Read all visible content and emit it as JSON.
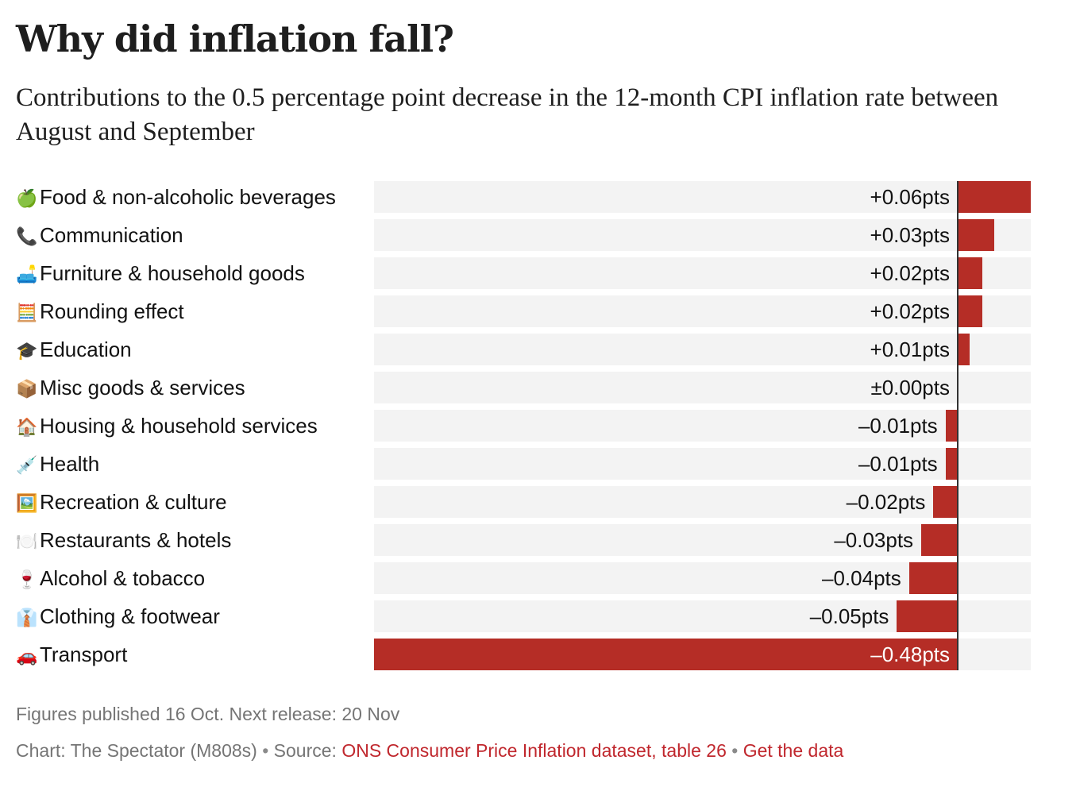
{
  "header": {
    "title": "Why did inflation fall?",
    "subtitle": "Contributions to the 0.5 percentage point decrease in the 12-month CPI inflation rate between August and September"
  },
  "colors": {
    "bar": "#b52d26",
    "row_background": "#f3f3f3",
    "axis": "#333333",
    "link": "#c0272d",
    "footer_text": "#757575"
  },
  "chart_data": {
    "type": "bar",
    "orientation": "horizontal",
    "title": "Why did inflation fall?",
    "subtitle": "Contributions to the 0.5 percentage point decrease in the 12-month CPI inflation rate between August and September",
    "xlabel": "",
    "ylabel": "",
    "unit": "percentage points",
    "xlim": [
      -0.48,
      0.06
    ],
    "categories": [
      "Food & non-alcoholic beverages",
      "Communication",
      "Furniture & household goods",
      "Rounding effect",
      "Education",
      "Misc goods & services",
      "Housing & household services",
      "Health",
      "Recreation & culture",
      "Restaurants & hotels",
      "Alcohol & tobacco",
      "Clothing & footwear",
      "Transport"
    ],
    "icons": [
      "green-apple",
      "telephone-receiver",
      "couch-and-lamp",
      "abacus",
      "graduation-cap",
      "package",
      "house",
      "syringe",
      "framed-picture",
      "fork-and-knife-with-plate",
      "wine-glass",
      "necktie",
      "automobile"
    ],
    "emoji": [
      "🍏",
      "📞",
      "🛋️",
      "🧮",
      "🎓",
      "📦",
      "🏠",
      "💉",
      "🖼️",
      "🍽️",
      "🍷",
      "👔",
      "🚗"
    ],
    "values": [
      0.06,
      0.03,
      0.02,
      0.02,
      0.01,
      0.0,
      -0.01,
      -0.01,
      -0.02,
      -0.03,
      -0.04,
      -0.05,
      -0.48
    ],
    "value_labels": [
      "+0.06pts",
      "+0.03pts",
      "+0.02pts",
      "+0.02pts",
      "+0.01pts",
      "±0.00pts",
      "–0.01pts",
      "–0.01pts",
      "–0.02pts",
      "–0.03pts",
      "–0.04pts",
      "–0.05pts",
      "–0.48pts"
    ],
    "grid": false,
    "legend": "none"
  },
  "footer": {
    "published": "Figures published 16 Oct. Next release: 20 Nov",
    "credit_prefix": "Chart: The Spectator (M808s)",
    "separator": "•",
    "source_prefix": "Source:",
    "source_link": "ONS Consumer Price Inflation dataset, table 26",
    "data_link": "Get the data"
  }
}
